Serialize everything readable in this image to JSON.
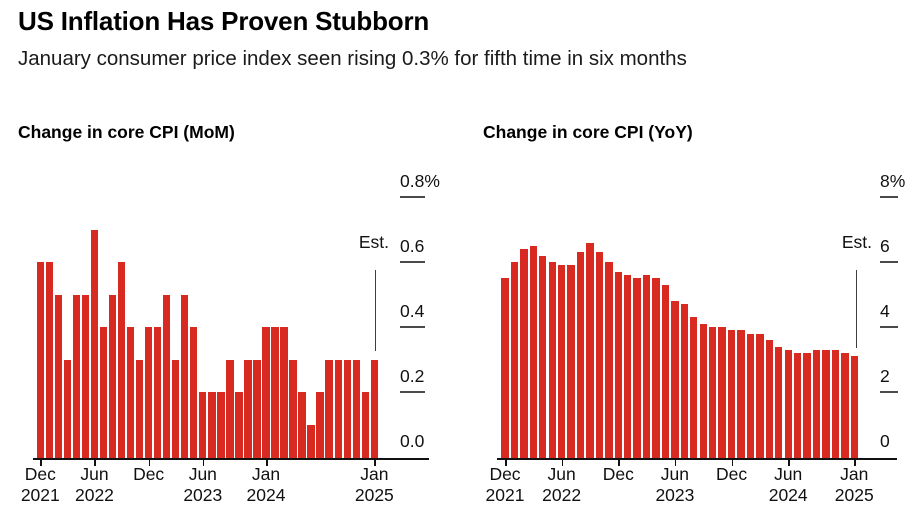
{
  "header": {
    "title": "US Inflation Has Proven Stubborn",
    "subtitle": "January consumer price index seen rising 0.3% for fifth time in six months"
  },
  "colors": {
    "bar": "#d92a21",
    "axis": "#111111",
    "tick_dash": "#4a4a4a",
    "est_line": "#3d3d3d",
    "text": "#111111"
  },
  "chart_data": [
    {
      "type": "bar",
      "title": "Change in core CPI (MoM)",
      "unit": "%",
      "ylim": [
        0,
        0.8
      ],
      "grid": false,
      "legend": "none",
      "axis_side": "right",
      "categories": [
        "Dec 2021",
        "Jan 2022",
        "Feb 2022",
        "Mar 2022",
        "Apr 2022",
        "May 2022",
        "Jun 2022",
        "Jul 2022",
        "Aug 2022",
        "Sep 2022",
        "Oct 2022",
        "Nov 2022",
        "Dec 2022",
        "Jan 2023",
        "Feb 2023",
        "Mar 2023",
        "Apr 2023",
        "May 2023",
        "Jun 2023",
        "Jul 2023",
        "Aug 2023",
        "Sep 2023",
        "Oct 2023",
        "Nov 2023",
        "Dec 2023",
        "Jan 2024",
        "Feb 2024",
        "Mar 2024",
        "Apr 2024",
        "May 2024",
        "Jun 2024",
        "Jul 2024",
        "Aug 2024",
        "Sep 2024",
        "Oct 2024",
        "Nov 2024",
        "Dec 2024",
        "Jan 2025"
      ],
      "values": [
        0.6,
        0.6,
        0.5,
        0.3,
        0.5,
        0.5,
        0.7,
        0.4,
        0.5,
        0.6,
        0.4,
        0.3,
        0.4,
        0.4,
        0.5,
        0.3,
        0.5,
        0.4,
        0.2,
        0.2,
        0.2,
        0.3,
        0.2,
        0.3,
        0.3,
        0.4,
        0.4,
        0.4,
        0.3,
        0.2,
        0.1,
        0.2,
        0.3,
        0.3,
        0.3,
        0.3,
        0.2,
        0.3
      ],
      "y_ticks": [
        {
          "label": "0.8%",
          "value": 0.8
        },
        {
          "label": "0.6",
          "value": 0.6
        },
        {
          "label": "0.4",
          "value": 0.4
        },
        {
          "label": "0.2",
          "value": 0.2
        },
        {
          "label": "0.0",
          "value": 0
        }
      ],
      "x_ticks": [
        {
          "line1": "Dec",
          "line2": "2021",
          "index": 0
        },
        {
          "line1": "Jun",
          "line2": "2022",
          "index": 6
        },
        {
          "line1": "Dec",
          "line2": "",
          "index": 12
        },
        {
          "line1": "Jun",
          "line2": "2023",
          "index": 18
        },
        {
          "line1": "Jan",
          "line2": "2024",
          "index": 25
        },
        {
          "line1": "Jan",
          "line2": "2025",
          "index": 37
        }
      ],
      "annotation": {
        "label": "Est.",
        "index": 37,
        "estimate_value": 0.3
      }
    },
    {
      "type": "bar",
      "title": "Change in core CPI (YoY)",
      "unit": "%",
      "ylim": [
        0,
        8
      ],
      "grid": false,
      "legend": "none",
      "axis_side": "right",
      "categories": [
        "Dec 2021",
        "Jan 2022",
        "Feb 2022",
        "Mar 2022",
        "Apr 2022",
        "May 2022",
        "Jun 2022",
        "Jul 2022",
        "Aug 2022",
        "Sep 2022",
        "Oct 2022",
        "Nov 2022",
        "Dec 2022",
        "Jan 2023",
        "Feb 2023",
        "Mar 2023",
        "Apr 2023",
        "May 2023",
        "Jun 2023",
        "Jul 2023",
        "Aug 2023",
        "Sep 2023",
        "Oct 2023",
        "Nov 2023",
        "Dec 2023",
        "Jan 2024",
        "Feb 2024",
        "Mar 2024",
        "Apr 2024",
        "May 2024",
        "Jun 2024",
        "Jul 2024",
        "Aug 2024",
        "Sep 2024",
        "Oct 2024",
        "Nov 2024",
        "Dec 2024",
        "Jan 2025"
      ],
      "values": [
        5.5,
        6.0,
        6.4,
        6.5,
        6.2,
        6.0,
        5.9,
        5.9,
        6.3,
        6.6,
        6.3,
        6.0,
        5.7,
        5.6,
        5.5,
        5.6,
        5.5,
        5.3,
        4.8,
        4.7,
        4.3,
        4.1,
        4.0,
        4.0,
        3.9,
        3.9,
        3.8,
        3.8,
        3.6,
        3.4,
        3.3,
        3.2,
        3.2,
        3.3,
        3.3,
        3.3,
        3.2,
        3.1
      ],
      "y_ticks": [
        {
          "label": "8%",
          "value": 8
        },
        {
          "label": "6",
          "value": 6
        },
        {
          "label": "4",
          "value": 4
        },
        {
          "label": "2",
          "value": 2
        },
        {
          "label": "0",
          "value": 0
        }
      ],
      "x_ticks": [
        {
          "line1": "Dec",
          "line2": "2021",
          "index": 0
        },
        {
          "line1": "Jun",
          "line2": "2022",
          "index": 6
        },
        {
          "line1": "Dec",
          "line2": "",
          "index": 12
        },
        {
          "line1": "Jun",
          "line2": "2023",
          "index": 18
        },
        {
          "line1": "Dec",
          "line2": "",
          "index": 24
        },
        {
          "line1": "Jun",
          "line2": "2024",
          "index": 30
        },
        {
          "line1": "Jan",
          "line2": "2025",
          "index": 37
        }
      ],
      "annotation": {
        "label": "Est.",
        "index": 37,
        "estimate_value": 3.1
      }
    }
  ]
}
